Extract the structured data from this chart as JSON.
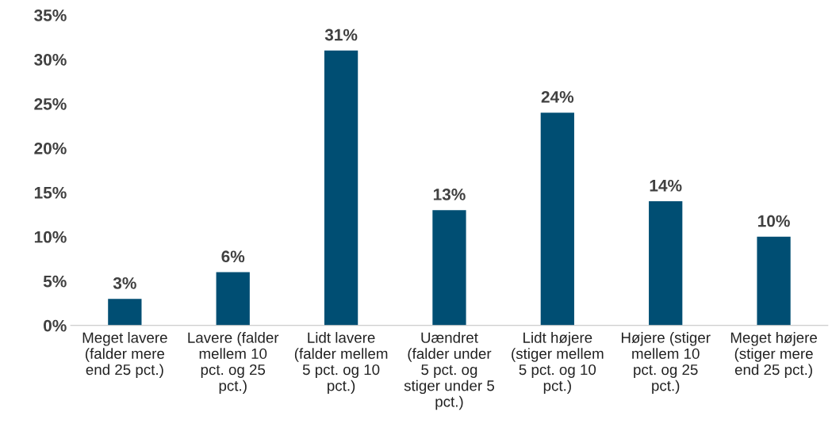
{
  "chart_data": {
    "type": "bar",
    "categories": [
      "Meget lavere\n(falder mere\nend 25 pct.)",
      "Lavere (falder\nmellem 10\npct. og 25\npct.)",
      "Lidt lavere\n(falder mellem\n5 pct. og 10\npct.)",
      "Uændret\n(falder under\n5 pct. og\nstiger under 5\npct.)",
      "Lidt højere\n(stiger mellem\n5 pct. og 10\npct.)",
      "Højere (stiger\nmellem 10\npct. og 25\npct.)",
      "Meget højere\n(stiger mere\nend 25 pct.)"
    ],
    "values": [
      3,
      6,
      31,
      13,
      24,
      14,
      10
    ],
    "value_labels": [
      "3%",
      "6%",
      "31%",
      "13%",
      "24%",
      "14%",
      "10%"
    ],
    "color": "#004e73",
    "ylim": [
      0,
      35
    ],
    "yticks": [
      {
        "value": 0,
        "label": "0%"
      },
      {
        "value": 5,
        "label": "5%"
      },
      {
        "value": 10,
        "label": "10%"
      },
      {
        "value": 15,
        "label": "15%"
      },
      {
        "value": 20,
        "label": "20%"
      },
      {
        "value": 25,
        "label": "25%"
      },
      {
        "value": 30,
        "label": "30%"
      },
      {
        "value": 35,
        "label": "35%"
      }
    ],
    "grid": false,
    "legend": false
  }
}
